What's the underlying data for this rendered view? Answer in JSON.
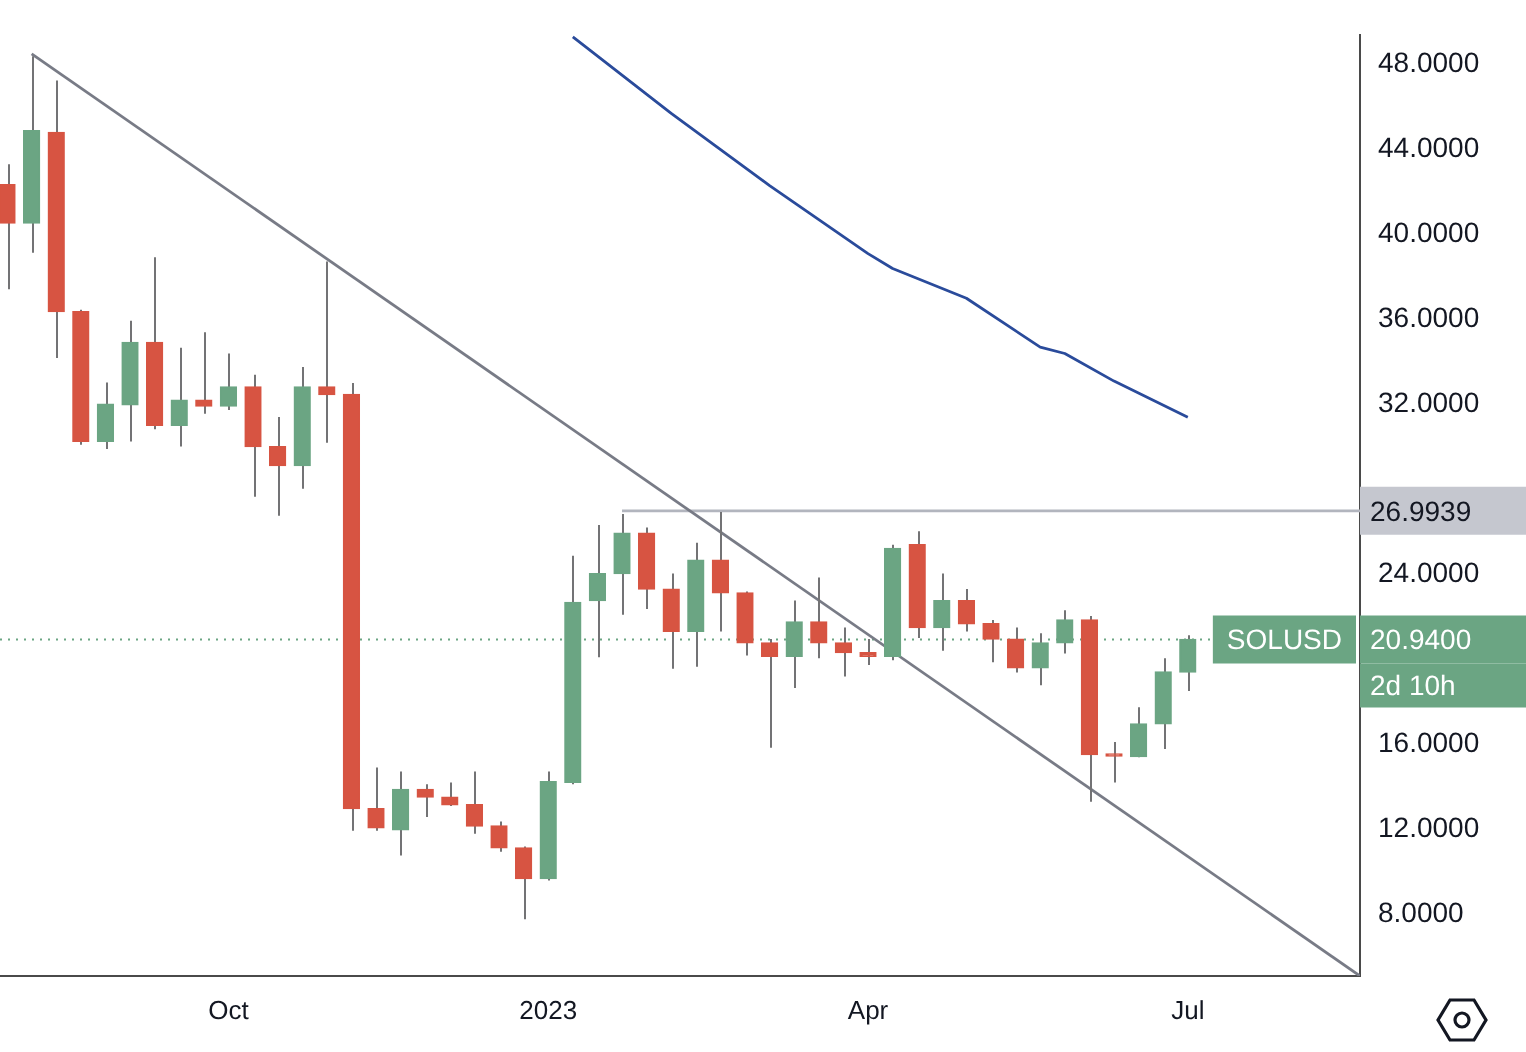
{
  "chart_data": {
    "type": "candlestick",
    "x": [
      "2022-08-01",
      "2022-08-08",
      "2022-08-15",
      "2022-08-22",
      "2022-08-29",
      "2022-09-05",
      "2022-09-12",
      "2022-09-19",
      "2022-09-26",
      "2022-10-03",
      "2022-10-10",
      "2022-10-17",
      "2022-10-24",
      "2022-10-31",
      "2022-11-07",
      "2022-11-14",
      "2022-11-21",
      "2022-11-28",
      "2022-12-05",
      "2022-12-12",
      "2022-12-19",
      "2022-12-26",
      "2023-01-02",
      "2023-01-09",
      "2023-01-16",
      "2023-01-23",
      "2023-01-30",
      "2023-02-06",
      "2023-02-13",
      "2023-02-20",
      "2023-02-27",
      "2023-03-06",
      "2023-03-13",
      "2023-03-20",
      "2023-03-27",
      "2023-04-03",
      "2023-04-10",
      "2023-04-17",
      "2023-04-24",
      "2023-05-01",
      "2023-05-08",
      "2023-05-15",
      "2023-05-22",
      "2023-05-29",
      "2023-06-05",
      "2023-06-12",
      "2023-06-19",
      "2023-06-26",
      "2023-07-03"
    ],
    "ohlc": [
      [
        42.35,
        43.31,
        37.42,
        40.54
      ],
      [
        40.54,
        48.39,
        39.14,
        44.89
      ],
      [
        44.8,
        47.25,
        34.19,
        36.37
      ],
      [
        36.37,
        36.46,
        30.11,
        30.26
      ],
      [
        30.26,
        33.04,
        29.9,
        32.02
      ],
      [
        31.98,
        35.94,
        30.26,
        34.92
      ],
      [
        34.92,
        38.93,
        30.84,
        31.02
      ],
      [
        31.02,
        34.67,
        30.02,
        32.2
      ],
      [
        32.2,
        35.4,
        31.56,
        31.93
      ],
      [
        31.93,
        34.4,
        31.74,
        32.83
      ],
      [
        32.83,
        33.4,
        27.66,
        30.02
      ],
      [
        30.02,
        31.41,
        26.76,
        29.12
      ],
      [
        29.12,
        33.77,
        28.03,
        32.83
      ],
      [
        32.83,
        38.73,
        30.2,
        32.47
      ],
      [
        32.47,
        33.01,
        11.94,
        12.98
      ],
      [
        12.98,
        14.91,
        11.94,
        12.07
      ],
      [
        11.98,
        14.73,
        10.77,
        13.88
      ],
      [
        13.88,
        14.12,
        12.58,
        13.52
      ],
      [
        13.52,
        14.21,
        13.1,
        13.16
      ],
      [
        13.16,
        14.73,
        11.8,
        12.16
      ],
      [
        12.16,
        12.37,
        10.95,
        11.13
      ],
      [
        11.13,
        11.2,
        7.77,
        9.68
      ],
      [
        9.68,
        14.73,
        9.59,
        14.25
      ],
      [
        14.21,
        24.88,
        14.12,
        22.68
      ],
      [
        22.77,
        26.33,
        20.1,
        24.04
      ],
      [
        24.04,
        26.85,
        22.1,
        25.94
      ],
      [
        25.94,
        26.21,
        22.37,
        23.31
      ],
      [
        23.31,
        24.04,
        19.56,
        21.32
      ],
      [
        21.32,
        25.49,
        19.65,
        24.67
      ],
      [
        24.67,
        26.94,
        21.32,
        23.13
      ],
      [
        23.13,
        23.2,
        20.19,
        20.78
      ],
      [
        20.78,
        20.96,
        15.84,
        20.14
      ],
      [
        20.14,
        22.77,
        18.65,
        21.77
      ],
      [
        21.77,
        23.86,
        20.05,
        20.78
      ],
      [
        20.78,
        21.5,
        19.2,
        20.32
      ],
      [
        20.32,
        20.96,
        19.74,
        20.14
      ],
      [
        20.14,
        25.4,
        19.96,
        25.22
      ],
      [
        25.4,
        26.03,
        21.01,
        21.5
      ],
      [
        21.5,
        24.04,
        20.41,
        22.77
      ],
      [
        22.77,
        23.31,
        21.32,
        21.68
      ],
      [
        21.68,
        21.86,
        19.87,
        20.96
      ],
      [
        20.96,
        21.5,
        19.38,
        19.6
      ],
      [
        19.6,
        21.23,
        18.78,
        20.78
      ],
      [
        20.78,
        22.32,
        20.28,
        21.86
      ],
      [
        21.86,
        22.04,
        13.3,
        15.52
      ],
      [
        15.55,
        16.11,
        14.21,
        15.45
      ],
      [
        15.43,
        17.75,
        15.4,
        16.97
      ],
      [
        16.97,
        20.05,
        15.79,
        19.41
      ],
      [
        19.41,
        21.14,
        18.51,
        20.94
      ]
    ],
    "colors": [
      "#d75442",
      "#6ba583",
      "#d75442",
      "#d75442",
      "#6ba583",
      "#6ba583",
      "#d75442",
      "#6ba583",
      "#d75442",
      "#6ba583",
      "#d75442",
      "#d75442",
      "#6ba583",
      "#d75442",
      "#d75442",
      "#d75442",
      "#6ba583",
      "#d75442",
      "#d75442",
      "#d75442",
      "#d75442",
      "#d75442",
      "#6ba583",
      "#6ba583",
      "#6ba583",
      "#6ba583",
      "#d75442",
      "#d75442",
      "#6ba583",
      "#d75442",
      "#d75442",
      "#d75442",
      "#6ba583",
      "#d75442",
      "#d75442",
      "#d75442",
      "#6ba583",
      "#d75442",
      "#6ba583",
      "#d75442",
      "#d75442",
      "#d75442",
      "#6ba583",
      "#6ba583",
      "#d75442",
      "#d75442",
      "#6ba583",
      "#6ba583",
      "#6ba583"
    ],
    "series": [
      {
        "type": "line",
        "color": "#2a4b9b",
        "x": [
          "2023-01-09",
          "2023-02-06",
          "2023-03-06",
          "2023-04-03",
          "2023-04-10",
          "2023-05-01",
          "2023-05-22",
          "2023-05-29",
          "2023-06-12",
          "2023-07-03"
        ],
        "values": [
          49.3,
          45.7,
          42.3,
          39.1,
          38.4,
          37.0,
          34.7,
          34.4,
          33.1,
          31.4
        ]
      },
      {
        "type": "line",
        "color": "#787b86",
        "x": [
          "2022-08-08",
          "2023-08-21"
        ],
        "values": [
          48.5,
          5.1
        ]
      },
      {
        "type": "line",
        "color": "#b2b5be",
        "x": [
          "2023-01-23",
          "2023-08-21"
        ],
        "values": [
          26.9939,
          26.9939
        ]
      }
    ],
    "xlim": [
      "2022-07-30",
      "2023-08-21"
    ],
    "xticks": [
      {
        "value": "2022-10-03",
        "label": "Oct"
      },
      {
        "value": "2023-01-02",
        "label": "2023"
      },
      {
        "value": "2023-04-03",
        "label": "Apr"
      },
      {
        "value": "2023-07-03",
        "label": "Jul"
      }
    ],
    "ylim": [
      5.1,
      49.4
    ],
    "yticks": [
      {
        "value": 8,
        "label": "8.0000"
      },
      {
        "value": 12,
        "label": "12.0000"
      },
      {
        "value": 16,
        "label": "16.0000"
      },
      {
        "value": 24,
        "label": "24.0000"
      },
      {
        "value": 32,
        "label": "32.0000"
      },
      {
        "value": 36,
        "label": "36.0000"
      },
      {
        "value": 40,
        "label": "40.0000"
      },
      {
        "value": 44,
        "label": "44.0000"
      },
      {
        "value": 48,
        "label": "48.0000"
      }
    ],
    "ref_lines": [
      {
        "axis": "y",
        "value": 20.94,
        "label": "20.9400",
        "color": "#6ba583",
        "line_style": "dotted"
      }
    ],
    "annotations": [
      "26.9939",
      "SOLUSD",
      "2d 10h"
    ],
    "grid": false,
    "legend": false
  }
}
